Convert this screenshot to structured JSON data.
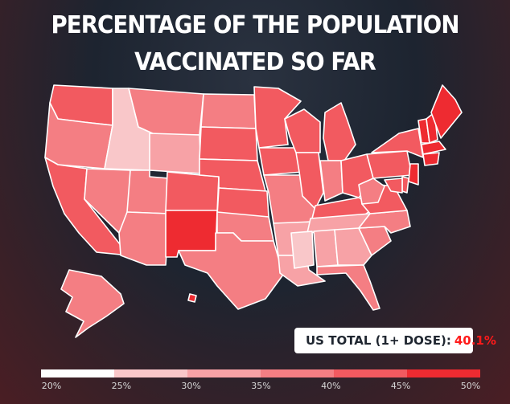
{
  "title": {
    "line1": "PERCENTAGE OF THE POPULATION",
    "line2": "VACCINATED SO FAR"
  },
  "total": {
    "label": "US TOTAL (1+ DOSE):",
    "value": "40.1%"
  },
  "legend": {
    "ticks": [
      "20%",
      "25%",
      "30%",
      "35%",
      "40%",
      "45%",
      "50%"
    ],
    "colors": [
      "#ffffff",
      "#f9c7c9",
      "#f7a2a6",
      "#f47e83",
      "#f25a60",
      "#ee2b31"
    ]
  },
  "colors": {
    "state_border": "#ffffff",
    "bin_25_30": "#f9c7c9",
    "bin_30_35": "#f7a2a6",
    "bin_35_40": "#f47e83",
    "bin_40_45": "#f25a60",
    "bin_45_50": "#ee2b31",
    "bin_50_plus": "#ff0a0a"
  },
  "map_data": {
    "metric": "percent of population vaccinated (1+ dose)",
    "states": [
      {
        "id": "WA",
        "bin": "40-45"
      },
      {
        "id": "OR",
        "bin": "35-40"
      },
      {
        "id": "CA",
        "bin": "40-45"
      },
      {
        "id": "NV",
        "bin": "35-40"
      },
      {
        "id": "ID",
        "bin": "25-30"
      },
      {
        "id": "MT",
        "bin": "35-40"
      },
      {
        "id": "WY",
        "bin": "30-35"
      },
      {
        "id": "UT",
        "bin": "35-40"
      },
      {
        "id": "AZ",
        "bin": "35-40"
      },
      {
        "id": "CO",
        "bin": "40-45"
      },
      {
        "id": "NM",
        "bin": "45-50"
      },
      {
        "id": "ND",
        "bin": "35-40"
      },
      {
        "id": "SD",
        "bin": "40-45"
      },
      {
        "id": "NE",
        "bin": "40-45"
      },
      {
        "id": "KS",
        "bin": "40-45"
      },
      {
        "id": "OK",
        "bin": "35-40"
      },
      {
        "id": "TX",
        "bin": "35-40"
      },
      {
        "id": "MN",
        "bin": "40-45"
      },
      {
        "id": "IA",
        "bin": "40-45"
      },
      {
        "id": "MO",
        "bin": "35-40"
      },
      {
        "id": "AR",
        "bin": "30-35"
      },
      {
        "id": "LA",
        "bin": "30-35"
      },
      {
        "id": "WI",
        "bin": "40-45"
      },
      {
        "id": "IL",
        "bin": "40-45"
      },
      {
        "id": "MI",
        "bin": "40-45"
      },
      {
        "id": "IN",
        "bin": "35-40"
      },
      {
        "id": "OH",
        "bin": "40-45"
      },
      {
        "id": "KY",
        "bin": "40-45"
      },
      {
        "id": "TN",
        "bin": "30-35"
      },
      {
        "id": "MS",
        "bin": "25-30"
      },
      {
        "id": "AL",
        "bin": "30-35"
      },
      {
        "id": "GA",
        "bin": "30-35"
      },
      {
        "id": "FL",
        "bin": "35-40"
      },
      {
        "id": "SC",
        "bin": "35-40"
      },
      {
        "id": "NC",
        "bin": "35-40"
      },
      {
        "id": "VA",
        "bin": "40-45"
      },
      {
        "id": "WV",
        "bin": "35-40"
      },
      {
        "id": "PA",
        "bin": "40-45"
      },
      {
        "id": "NY",
        "bin": "40-45"
      },
      {
        "id": "VT",
        "bin": "45-50"
      },
      {
        "id": "NH",
        "bin": "45-50"
      },
      {
        "id": "ME",
        "bin": "45-50"
      },
      {
        "id": "MA",
        "bin": "45-50"
      },
      {
        "id": "CT",
        "bin": "45-50"
      },
      {
        "id": "NJ",
        "bin": "45-50"
      },
      {
        "id": "DE",
        "bin": "40-45"
      },
      {
        "id": "MD",
        "bin": "40-45"
      },
      {
        "id": "AK",
        "bin": "35-40"
      },
      {
        "id": "HI",
        "bin": "45-50"
      }
    ]
  }
}
